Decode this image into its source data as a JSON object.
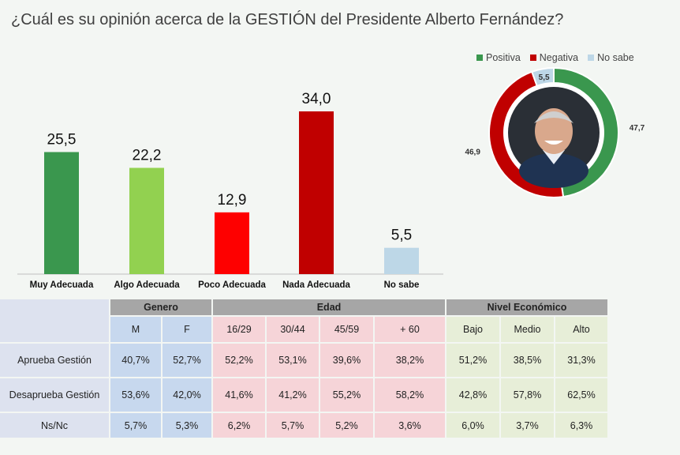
{
  "title": "¿Cuál es su opinión acerca de la GESTIÓN del Presidente Alberto Fernández?",
  "chart_data": [
    {
      "type": "bar",
      "categories": [
        "Muy Adecuada",
        "Algo Adecuada",
        "Poco Adecuada",
        "Nada Adecuada",
        "No sabe"
      ],
      "values": [
        25.5,
        22.2,
        12.9,
        34.0,
        5.5
      ],
      "value_labels": [
        "25,5",
        "22,2",
        "12,9",
        "34,0",
        "5,5"
      ],
      "colors": [
        "#3a974e",
        "#92d150",
        "#fe0000",
        "#c00000",
        "#bdd7e7"
      ],
      "ylim": [
        0,
        34
      ],
      "grid": false
    },
    {
      "type": "pie",
      "style": "donut",
      "labels": [
        "Positiva",
        "Negativa",
        "No sabe"
      ],
      "values": [
        47.7,
        46.9,
        5.5
      ],
      "value_labels": [
        "47,7",
        "46,9",
        "5,5"
      ],
      "colors": [
        "#3a974e",
        "#c00000",
        "#bdd7e7"
      ],
      "legend": "top"
    }
  ],
  "table": {
    "groups": [
      "Genero",
      "Edad",
      "Nivel Económico"
    ],
    "subheaders": [
      "M",
      "F",
      "16/29",
      "30/44",
      "45/59",
      "+ 60",
      "Bajo",
      "Medio",
      "Alto"
    ],
    "rows": [
      {
        "label": "Aprueba Gestión",
        "values": [
          "40,7%",
          "52,7%",
          "52,2%",
          "53,1%",
          "39,6%",
          "38,2%",
          "51,2%",
          "38,5%",
          "31,3%"
        ]
      },
      {
        "label": "Desaprueba Gestión",
        "values": [
          "53,6%",
          "42,0%",
          "41,6%",
          "41,2%",
          "55,2%",
          "58,2%",
          "42,8%",
          "57,8%",
          "62,5%"
        ]
      },
      {
        "label": "Ns/Nc",
        "values": [
          "5,7%",
          "5,3%",
          "6,2%",
          "5,7%",
          "5,2%",
          "3,6%",
          "6,0%",
          "3,7%",
          "6,3%"
        ]
      }
    ]
  }
}
